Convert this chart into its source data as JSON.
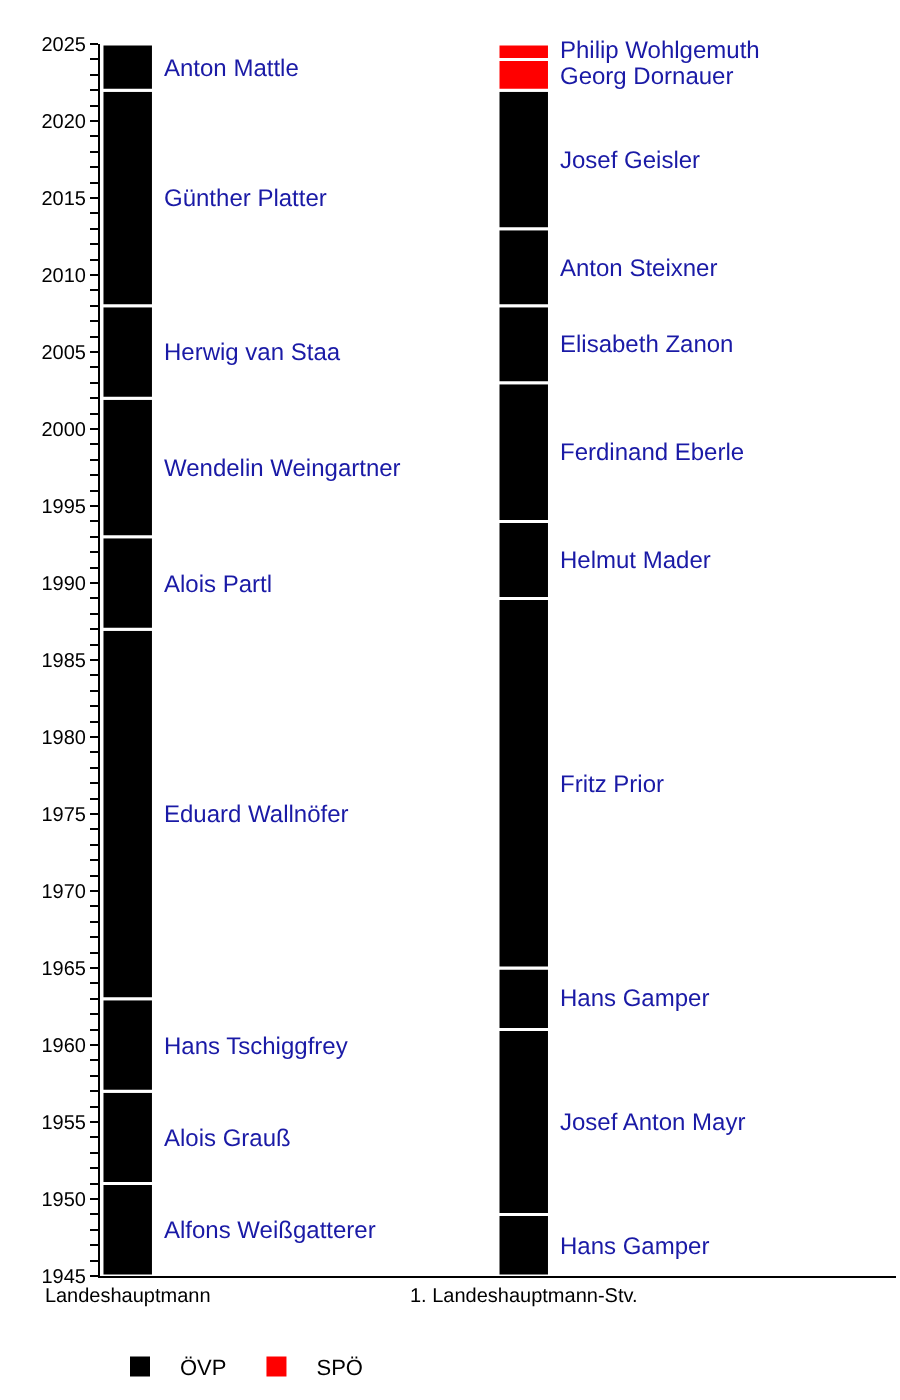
{
  "chart_data": {
    "type": "bar",
    "categories": [
      "Landeshauptmann",
      "1. Landeshauptmann-Stv."
    ],
    "series": [
      {
        "name": "ÖVP",
        "color": "#000000",
        "x": [
          "Landeshauptmann",
          "Landeshauptmann",
          "Landeshauptmann",
          "Landeshauptmann",
          "Landeshauptmann",
          "Landeshauptmann",
          "Landeshauptmann",
          "Landeshauptmann",
          "Landeshauptmann",
          "1. Landeshauptmann-Stv.",
          "1. Landeshauptmann-Stv.",
          "1. Landeshauptmann-Stv.",
          "1. Landeshauptmann-Stv.",
          "1. Landeshauptmann-Stv.",
          "1. Landeshauptmann-Stv.",
          "1. Landeshauptmann-Stv.",
          "1. Landeshauptmann-Stv.",
          "1. Landeshauptmann-Stv."
        ],
        "base": [
          1945,
          1951,
          1957,
          1963,
          1987,
          1993,
          2002,
          2008,
          2022,
          1945,
          1949,
          1961,
          1965,
          1989,
          1994,
          2003,
          2008,
          2013
        ],
        "values": [
          6,
          6,
          6,
          24,
          6,
          9,
          6,
          14,
          3,
          4,
          12,
          4,
          24,
          5,
          9,
          5,
          5,
          9
        ]
      },
      {
        "name": "SPÖ",
        "color": "#ff0000",
        "x": [
          "1. Landeshauptmann-Stv.",
          "1. Landeshauptmann-Stv."
        ],
        "base": [
          2022,
          2024
        ],
        "values": [
          2,
          1
        ]
      }
    ],
    "annotations": [
      "Alfons Weißgatterer",
      "Alois Grauß",
      "Hans Tschiggfrey",
      "Eduard Wallnöfer",
      "Alois Partl",
      "Wendelin Weingartner",
      "Herwig van Staa",
      "Günther Platter",
      "Anton Mattle",
      "Hans Gamper",
      "Josef Anton Mayr",
      "Hans Gamper",
      "Fritz Prior",
      "Helmut Mader",
      "Ferdinand Eberle",
      "Elisabeth Zanon",
      "Anton Steixner",
      "Josef Geisler",
      "Georg Dornauer",
      "Philip Wohlgemuth"
    ],
    "ylim": [
      1945,
      2025
    ],
    "yticks": [
      1945,
      {
        "value": 1946,
        "label": null
      },
      {
        "value": 1947,
        "label": null
      },
      {
        "value": 1948,
        "label": null
      },
      {
        "value": 1949,
        "label": null
      },
      1950,
      {
        "value": 1951,
        "label": null
      },
      {
        "value": 1952,
        "label": null
      },
      {
        "value": 1953,
        "label": null
      },
      {
        "value": 1954,
        "label": null
      },
      1955,
      {
        "value": 1956,
        "label": null
      },
      {
        "value": 1957,
        "label": null
      },
      {
        "value": 1958,
        "label": null
      },
      {
        "value": 1959,
        "label": null
      },
      1960,
      {
        "value": 1961,
        "label": null
      },
      {
        "value": 1962,
        "label": null
      },
      {
        "value": 1963,
        "label": null
      },
      {
        "value": 1964,
        "label": null
      },
      1965,
      {
        "value": 1966,
        "label": null
      },
      {
        "value": 1967,
        "label": null
      },
      {
        "value": 1968,
        "label": null
      },
      {
        "value": 1969,
        "label": null
      },
      1970,
      {
        "value": 1971,
        "label": null
      },
      {
        "value": 1972,
        "label": null
      },
      {
        "value": 1973,
        "label": null
      },
      {
        "value": 1974,
        "label": null
      },
      1975,
      {
        "value": 1976,
        "label": null
      },
      {
        "value": 1977,
        "label": null
      },
      {
        "value": 1978,
        "label": null
      },
      {
        "value": 1979,
        "label": null
      },
      1980,
      {
        "value": 1981,
        "label": null
      },
      {
        "value": 1982,
        "label": null
      },
      {
        "value": 1983,
        "label": null
      },
      {
        "value": 1984,
        "label": null
      },
      1985,
      {
        "value": 1986,
        "label": null
      },
      {
        "value": 1987,
        "label": null
      },
      {
        "value": 1988,
        "label": null
      },
      {
        "value": 1989,
        "label": null
      },
      1990,
      {
        "value": 1991,
        "label": null
      },
      {
        "value": 1992,
        "label": null
      },
      {
        "value": 1993,
        "label": null
      },
      {
        "value": 1994,
        "label": null
      },
      1995,
      {
        "value": 1996,
        "label": null
      },
      {
        "value": 1997,
        "label": null
      },
      {
        "value": 1998,
        "label": null
      },
      {
        "value": 1999,
        "label": null
      },
      2000,
      {
        "value": 2001,
        "label": null
      },
      {
        "value": 2002,
        "label": null
      },
      {
        "value": 2003,
        "label": null
      },
      {
        "value": 2004,
        "label": null
      },
      2005,
      {
        "value": 2006,
        "label": null
      },
      {
        "value": 2007,
        "label": null
      },
      {
        "value": 2008,
        "label": null
      },
      {
        "value": 2009,
        "label": null
      },
      2010,
      {
        "value": 2011,
        "label": null
      },
      {
        "value": 2012,
        "label": null
      },
      {
        "value": 2013,
        "label": null
      },
      {
        "value": 2014,
        "label": null
      },
      2015,
      {
        "value": 2016,
        "label": null
      },
      {
        "value": 2017,
        "label": null
      },
      {
        "value": 2018,
        "label": null
      },
      {
        "value": 2019,
        "label": null
      },
      2020,
      {
        "value": 2021,
        "label": null
      },
      {
        "value": 2022,
        "label": null
      },
      {
        "value": 2023,
        "label": null
      },
      {
        "value": 2024,
        "label": null
      },
      2025
    ],
    "grid": false,
    "legend": "bottom left"
  }
}
